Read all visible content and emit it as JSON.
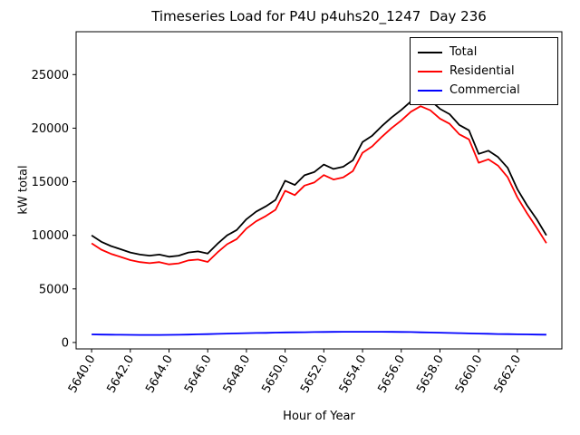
{
  "chart_data": {
    "type": "line",
    "title": "Timeseries Load for P4U p4uhs20_1247  Day 236",
    "xlabel": "Hour of Year",
    "ylabel": "kW total",
    "xlim": [
      5639.2,
      5664.3
    ],
    "ylim": [
      -600,
      29000
    ],
    "grid": false,
    "legend_position": "upper right",
    "xticks": {
      "values": [
        5640,
        5642,
        5644,
        5646,
        5648,
        5650,
        5652,
        5654,
        5656,
        5658,
        5660,
        5662
      ],
      "labels": [
        "5640.0",
        "5642.0",
        "5644.0",
        "5646.0",
        "5648.0",
        "5650.0",
        "5652.0",
        "5654.0",
        "5656.0",
        "5658.0",
        "5660.0",
        "5662.0"
      ]
    },
    "yticks": {
      "values": [
        0,
        5000,
        10000,
        15000,
        20000,
        25000
      ],
      "labels": [
        "0",
        "5000",
        "10000",
        "15000",
        "20000",
        "25000"
      ]
    },
    "x": [
      5640.0,
      5640.5,
      5641.0,
      5641.5,
      5642.0,
      5642.5,
      5643.0,
      5643.5,
      5644.0,
      5644.5,
      5645.0,
      5645.5,
      5646.0,
      5646.5,
      5647.0,
      5647.5,
      5648.0,
      5648.5,
      5649.0,
      5649.5,
      5650.0,
      5650.5,
      5651.0,
      5651.5,
      5652.0,
      5652.5,
      5653.0,
      5653.5,
      5654.0,
      5654.5,
      5655.0,
      5655.5,
      5656.0,
      5656.5,
      5657.0,
      5657.5,
      5658.0,
      5658.5,
      5659.0,
      5659.5,
      5660.0,
      5660.5,
      5661.0,
      5661.5,
      5662.0,
      5662.5,
      5663.0,
      5663.5
    ],
    "series": [
      {
        "name": "Total",
        "color": "#000000",
        "values": [
          10000,
          9400,
          9000,
          8700,
          8400,
          8200,
          8100,
          8200,
          8000,
          8100,
          8400,
          8500,
          8300,
          9200,
          10000,
          10500,
          11500,
          12200,
          12700,
          13300,
          15100,
          14700,
          15600,
          15900,
          16600,
          16200,
          16400,
          17000,
          18700,
          19300,
          20200,
          21000,
          21700,
          22500,
          23000,
          22600,
          21800,
          21300,
          20300,
          19800,
          17600,
          17900,
          17300,
          16300,
          14300,
          12800,
          11500,
          10000
        ]
      },
      {
        "name": "Residential",
        "color": "#ff0000",
        "values": [
          9250,
          8660,
          8270,
          7980,
          7690,
          7500,
          7400,
          7500,
          7290,
          7380,
          7660,
          7740,
          7520,
          8400,
          9170,
          9650,
          10630,
          11310,
          11800,
          12380,
          14160,
          13750,
          14640,
          14930,
          15620,
          15210,
          15400,
          16000,
          17700,
          18300,
          19200,
          20010,
          20720,
          21530,
          22050,
          21670,
          20890,
          20410,
          19430,
          18950,
          16770,
          17090,
          16510,
          15420,
          13540,
          12050,
          10710,
          9270
        ]
      },
      {
        "name": "Commercial",
        "color": "#0000ff",
        "values": [
          750,
          740,
          730,
          720,
          710,
          700,
          700,
          700,
          710,
          720,
          740,
          760,
          780,
          800,
          830,
          850,
          870,
          890,
          900,
          920,
          940,
          950,
          960,
          970,
          980,
          990,
          1000,
          1000,
          1000,
          1000,
          1000,
          990,
          980,
          970,
          950,
          930,
          910,
          890,
          870,
          850,
          830,
          810,
          790,
          780,
          760,
          750,
          740,
          730
        ]
      }
    ]
  }
}
